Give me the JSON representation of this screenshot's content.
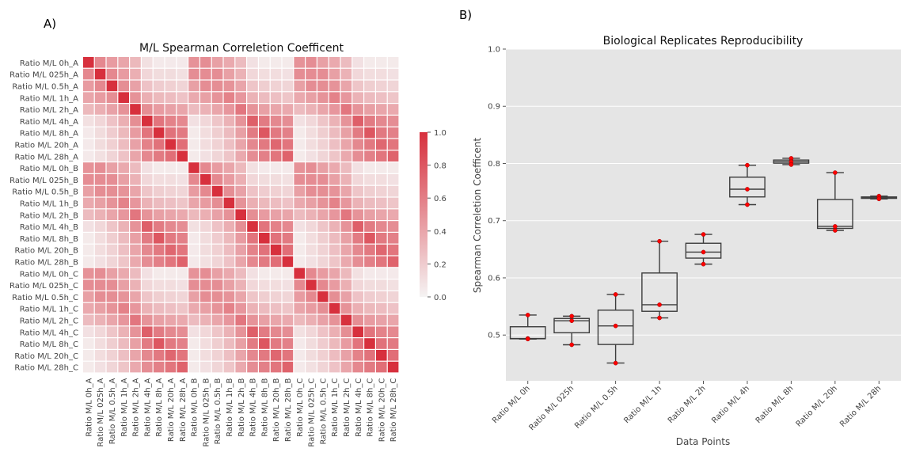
{
  "panels": {
    "a_label": "A)",
    "b_label": "B)"
  },
  "colors": {
    "heat_high": "#d7303d",
    "heat_low": "#f5f3f3",
    "box_bg": "#e5e5e5",
    "grid": "#ffffff",
    "box_line": "#3d3d3d",
    "point": "#ff0000",
    "point_edge": "#990000"
  },
  "chart_data": [
    {
      "type": "heatmap",
      "title": "M/L Spearman Correletion Coefficent",
      "row_labels": [
        "Ratio M/L 0h_A",
        "Ratio M/L 025h_A",
        "Ratio M/L 0.5h_A",
        "Ratio M/L 1h_A",
        "Ratio M/L 2h_A",
        "Ratio M/L 4h_A",
        "Ratio M/L 8h_A",
        "Ratio M/L 20h_A",
        "Ratio M/L 28h_A",
        "Ratio M/L 0h_B",
        "Ratio M/L 025h_B",
        "Ratio M/L 0.5h_B",
        "Ratio M/L 1h_B",
        "Ratio M/L 2h_B",
        "Ratio M/L 4h_B",
        "Ratio M/L 8h_B",
        "Ratio M/L 20h_B",
        "Ratio M/L 28h_B",
        "Ratio M/L 0h_C",
        "Ratio M/L 025h_C",
        "Ratio M/L 0.5h_C",
        "Ratio M/L 1h_C",
        "Ratio M/L 2h_C",
        "Ratio M/L 4h_C",
        "Ratio M/L 8h_C",
        "Ratio M/L 20h_C",
        "Ratio M/L 28h_C"
      ],
      "col_labels": [
        "Ratio M/L 0h_A",
        "Ratio M/L 025h_A",
        "Ratio M/L 0.5h_A",
        "Ratio M/L 1h_A",
        "Ratio M/L 2h_A",
        "Ratio M/L 4h_A",
        "Ratio M/L 8h_A",
        "Ratio M/L 20h_A",
        "Ratio M/L 28h_A",
        "Ratio M/L 0h_B",
        "Ratio M/L 025h_B",
        "Ratio M/L 0.5h_B",
        "Ratio M/L 1h_B",
        "Ratio M/L 2h_B",
        "Ratio M/L 4h_B",
        "Ratio M/L 8h_B",
        "Ratio M/L 20h_B",
        "Ratio M/L 28h_B",
        "Ratio M/L 0h_C",
        "Ratio M/L 025h_C",
        "Ratio M/L 0.5h_C",
        "Ratio M/L 1h_C",
        "Ratio M/L 2h_C",
        "Ratio M/L 4h_C",
        "Ratio M/L 8h_C",
        "Ratio M/L 20h_C",
        "Ratio M/L 28h_C"
      ],
      "time_point_correlation": [
        [
          1.0,
          0.55,
          0.45,
          0.4,
          0.3,
          0.1,
          0.05,
          0.05,
          0.05
        ],
        [
          0.55,
          1.0,
          0.55,
          0.45,
          0.35,
          0.15,
          0.12,
          0.12,
          0.1
        ],
        [
          0.45,
          0.55,
          1.0,
          0.52,
          0.42,
          0.25,
          0.2,
          0.18,
          0.16
        ],
        [
          0.4,
          0.45,
          0.52,
          1.0,
          0.5,
          0.35,
          0.3,
          0.28,
          0.25
        ],
        [
          0.3,
          0.35,
          0.42,
          0.5,
          1.0,
          0.52,
          0.45,
          0.42,
          0.4
        ],
        [
          0.1,
          0.15,
          0.25,
          0.35,
          0.52,
          1.0,
          0.65,
          0.58,
          0.55
        ],
        [
          0.05,
          0.12,
          0.2,
          0.3,
          0.45,
          0.65,
          1.0,
          0.66,
          0.62
        ],
        [
          0.05,
          0.12,
          0.18,
          0.28,
          0.42,
          0.58,
          0.66,
          1.0,
          0.68
        ],
        [
          0.05,
          0.1,
          0.16,
          0.25,
          0.4,
          0.55,
          0.62,
          0.68,
          1.0
        ]
      ],
      "replicate_diagonal": [
        0.5,
        0.53,
        0.52,
        0.58,
        0.64,
        0.76,
        0.8,
        0.72,
        0.74
      ],
      "colorbar": {
        "ticks": [
          0.0,
          0.2,
          0.4,
          0.6,
          0.8,
          1.0
        ],
        "range": [
          0.0,
          1.0
        ]
      }
    },
    {
      "type": "box",
      "title": "Biological Replicates Reproducibility",
      "xlabel": "Data Points",
      "ylabel": "Spearman Correletion Coefficent",
      "ylim": [
        0.42,
        1.0
      ],
      "yticks": [
        0.5,
        0.6,
        0.7,
        0.8,
        0.9,
        1.0
      ],
      "categories": [
        "Ratio M/L 0h",
        "Ratio M/L 025h",
        "Ratio M/L 0.5h",
        "Ratio M/L 1h",
        "Ratio M/L 2h",
        "Ratio M/L 4h",
        "Ratio M/L 8h",
        "Ratio M/L 20h",
        "Ratio M/L 28h"
      ],
      "points": [
        [
          0.535,
          0.494,
          0.493
        ],
        [
          0.533,
          0.525,
          0.483
        ],
        [
          0.571,
          0.516,
          0.451
        ],
        [
          0.664,
          0.553,
          0.53
        ],
        [
          0.676,
          0.645,
          0.624
        ],
        [
          0.797,
          0.755,
          0.728
        ],
        [
          0.809,
          0.803,
          0.798
        ],
        [
          0.784,
          0.69,
          0.683
        ],
        [
          0.743,
          0.74,
          0.738
        ]
      ],
      "boxes": [
        {
          "min": 0.493,
          "q1": 0.4935,
          "median": 0.494,
          "q3": 0.5145,
          "max": 0.535
        },
        {
          "min": 0.483,
          "q1": 0.504,
          "median": 0.525,
          "q3": 0.529,
          "max": 0.533
        },
        {
          "min": 0.451,
          "q1": 0.4835,
          "median": 0.516,
          "q3": 0.5435,
          "max": 0.571
        },
        {
          "min": 0.53,
          "q1": 0.5415,
          "median": 0.553,
          "q3": 0.6085,
          "max": 0.664
        },
        {
          "min": 0.624,
          "q1": 0.6345,
          "median": 0.645,
          "q3": 0.6605,
          "max": 0.676
        },
        {
          "min": 0.728,
          "q1": 0.7415,
          "median": 0.755,
          "q3": 0.776,
          "max": 0.797
        },
        {
          "min": 0.798,
          "q1": 0.8005,
          "median": 0.803,
          "q3": 0.806,
          "max": 0.809
        },
        {
          "min": 0.683,
          "q1": 0.6865,
          "median": 0.69,
          "q3": 0.737,
          "max": 0.784
        },
        {
          "min": 0.738,
          "q1": 0.739,
          "median": 0.74,
          "q3": 0.7415,
          "max": 0.743
        }
      ]
    }
  ]
}
